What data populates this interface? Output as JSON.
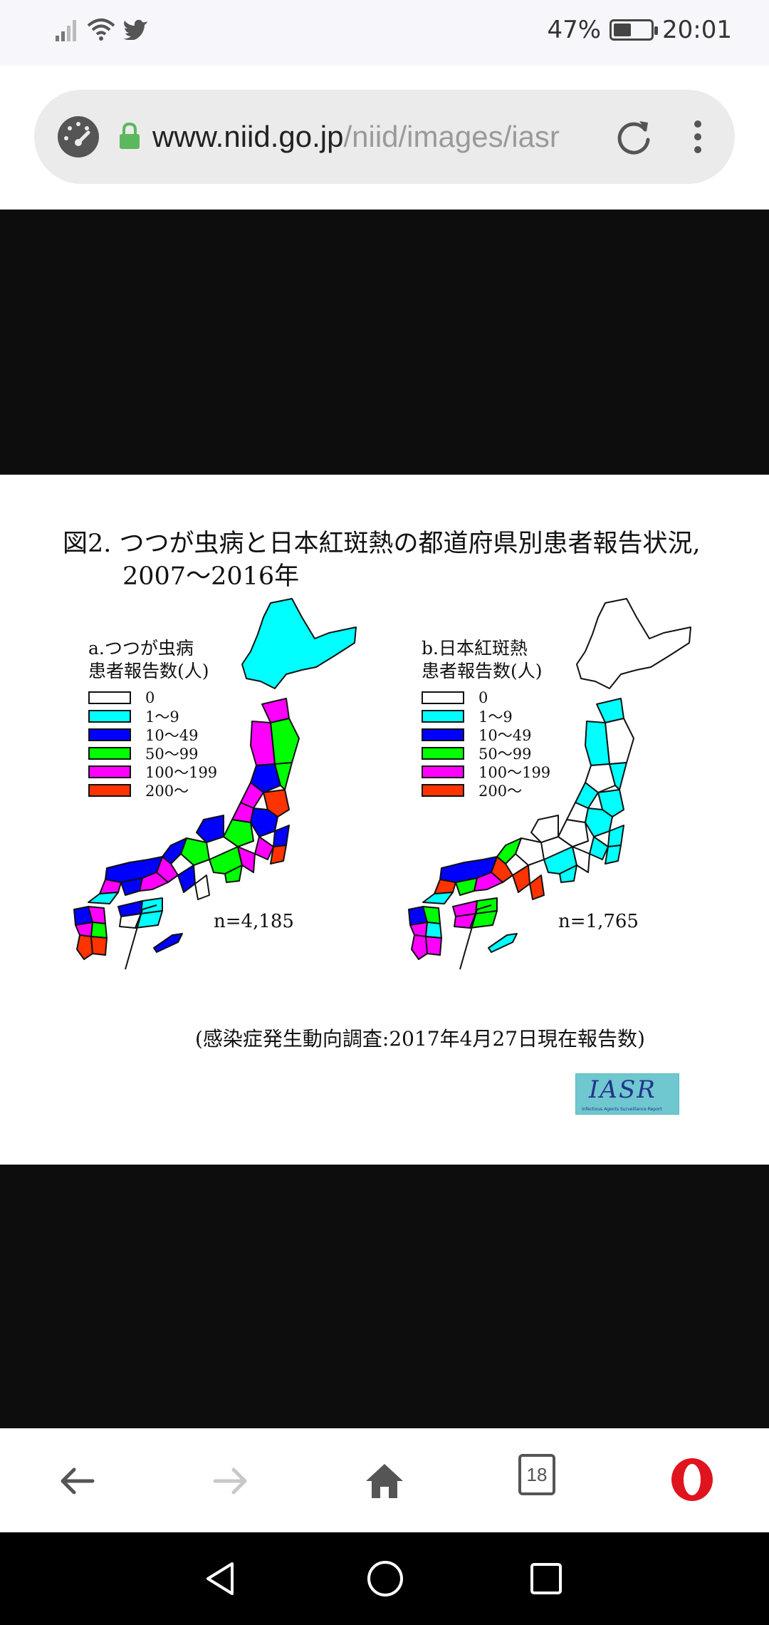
{
  "status": {
    "battery": "47%",
    "battery_level": 0.47,
    "time": "20:01"
  },
  "address_bar": {
    "host": "www.niid.go.jp",
    "path": "/niid/images/iasr"
  },
  "figure": {
    "title": "図2. つつが虫病と日本紅斑熱の都道府県別患者報告状況,",
    "years": "2007～2016年",
    "legend_colors": [
      "#ffffff",
      "#00ffff",
      "#0000ff",
      "#00ff00",
      "#ff00ff",
      "#ff3300"
    ],
    "legend_labels": [
      "0",
      "1～9",
      "10～49",
      "50～99",
      "100～199",
      "200～"
    ],
    "map_a": {
      "head1": "a.つつが虫病",
      "head2": "患者報告数(人)",
      "n": "n=4,185"
    },
    "map_b": {
      "head1": "b.日本紅斑熱",
      "head2": "患者報告数(人)",
      "n": "n=1,765"
    },
    "source": "(感染症発生動向調査:2017年4月27日現在報告数)",
    "logo": {
      "text": "IASR",
      "subtitle": "Infectious Agents Surveillance Report"
    }
  },
  "bottom_nav": {
    "tabs_count": "18"
  },
  "colors": {
    "url_host": "#222222",
    "url_path": "#9a9a9a",
    "lock": "#5cb85c",
    "opera": "#e0141e"
  }
}
